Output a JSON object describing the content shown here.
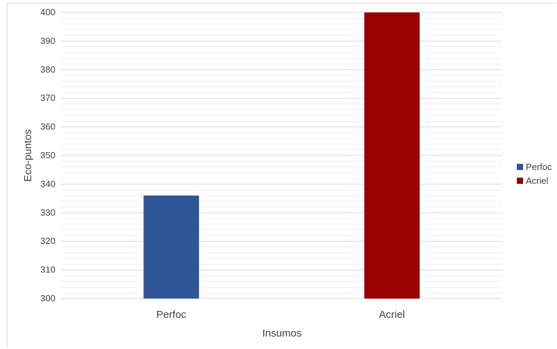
{
  "chart_data": {
    "type": "bar",
    "title": "",
    "xlabel": "Insumos",
    "ylabel": "Eco-puntos",
    "categories": [
      "Perfoc",
      "Acriel"
    ],
    "series": [
      {
        "name": "Perfoc",
        "values": [
          336,
          null
        ],
        "color": "#2f5597"
      },
      {
        "name": "Acriel",
        "values": [
          null,
          400
        ],
        "color": "#990000"
      }
    ],
    "ylim": [
      300,
      400
    ],
    "yticks": [
      300,
      310,
      320,
      330,
      340,
      350,
      360,
      370,
      380,
      390,
      400
    ],
    "grid": "on",
    "legend_position": "right"
  }
}
